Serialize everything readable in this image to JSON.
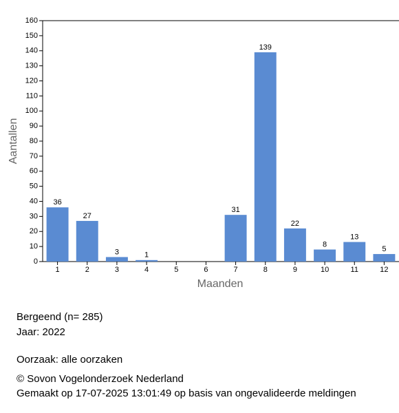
{
  "chart_data": {
    "type": "bar",
    "categories": [
      "1",
      "2",
      "3",
      "4",
      "5",
      "6",
      "7",
      "8",
      "9",
      "10",
      "11",
      "12"
    ],
    "values": [
      36,
      27,
      3,
      1,
      null,
      null,
      31,
      139,
      22,
      8,
      13,
      5
    ],
    "color": "#5a8bd2",
    "ylim": [
      0,
      160
    ],
    "yticks": [
      0,
      10,
      20,
      30,
      40,
      50,
      60,
      70,
      80,
      90,
      100,
      110,
      120,
      130,
      140,
      150,
      160
    ],
    "xlabel": "Maanden",
    "ylabel": "Aantallen"
  },
  "info": {
    "species": "Bergeend  (n= 285)",
    "year": "Jaar: 2022",
    "cause": "Oorzaak: alle oorzaken",
    "copyright": "© Sovon Vogelonderzoek Nederland",
    "made": "Gemaakt op 17-07-2025 13:01:49 op basis van ongevalideerde meldingen"
  }
}
